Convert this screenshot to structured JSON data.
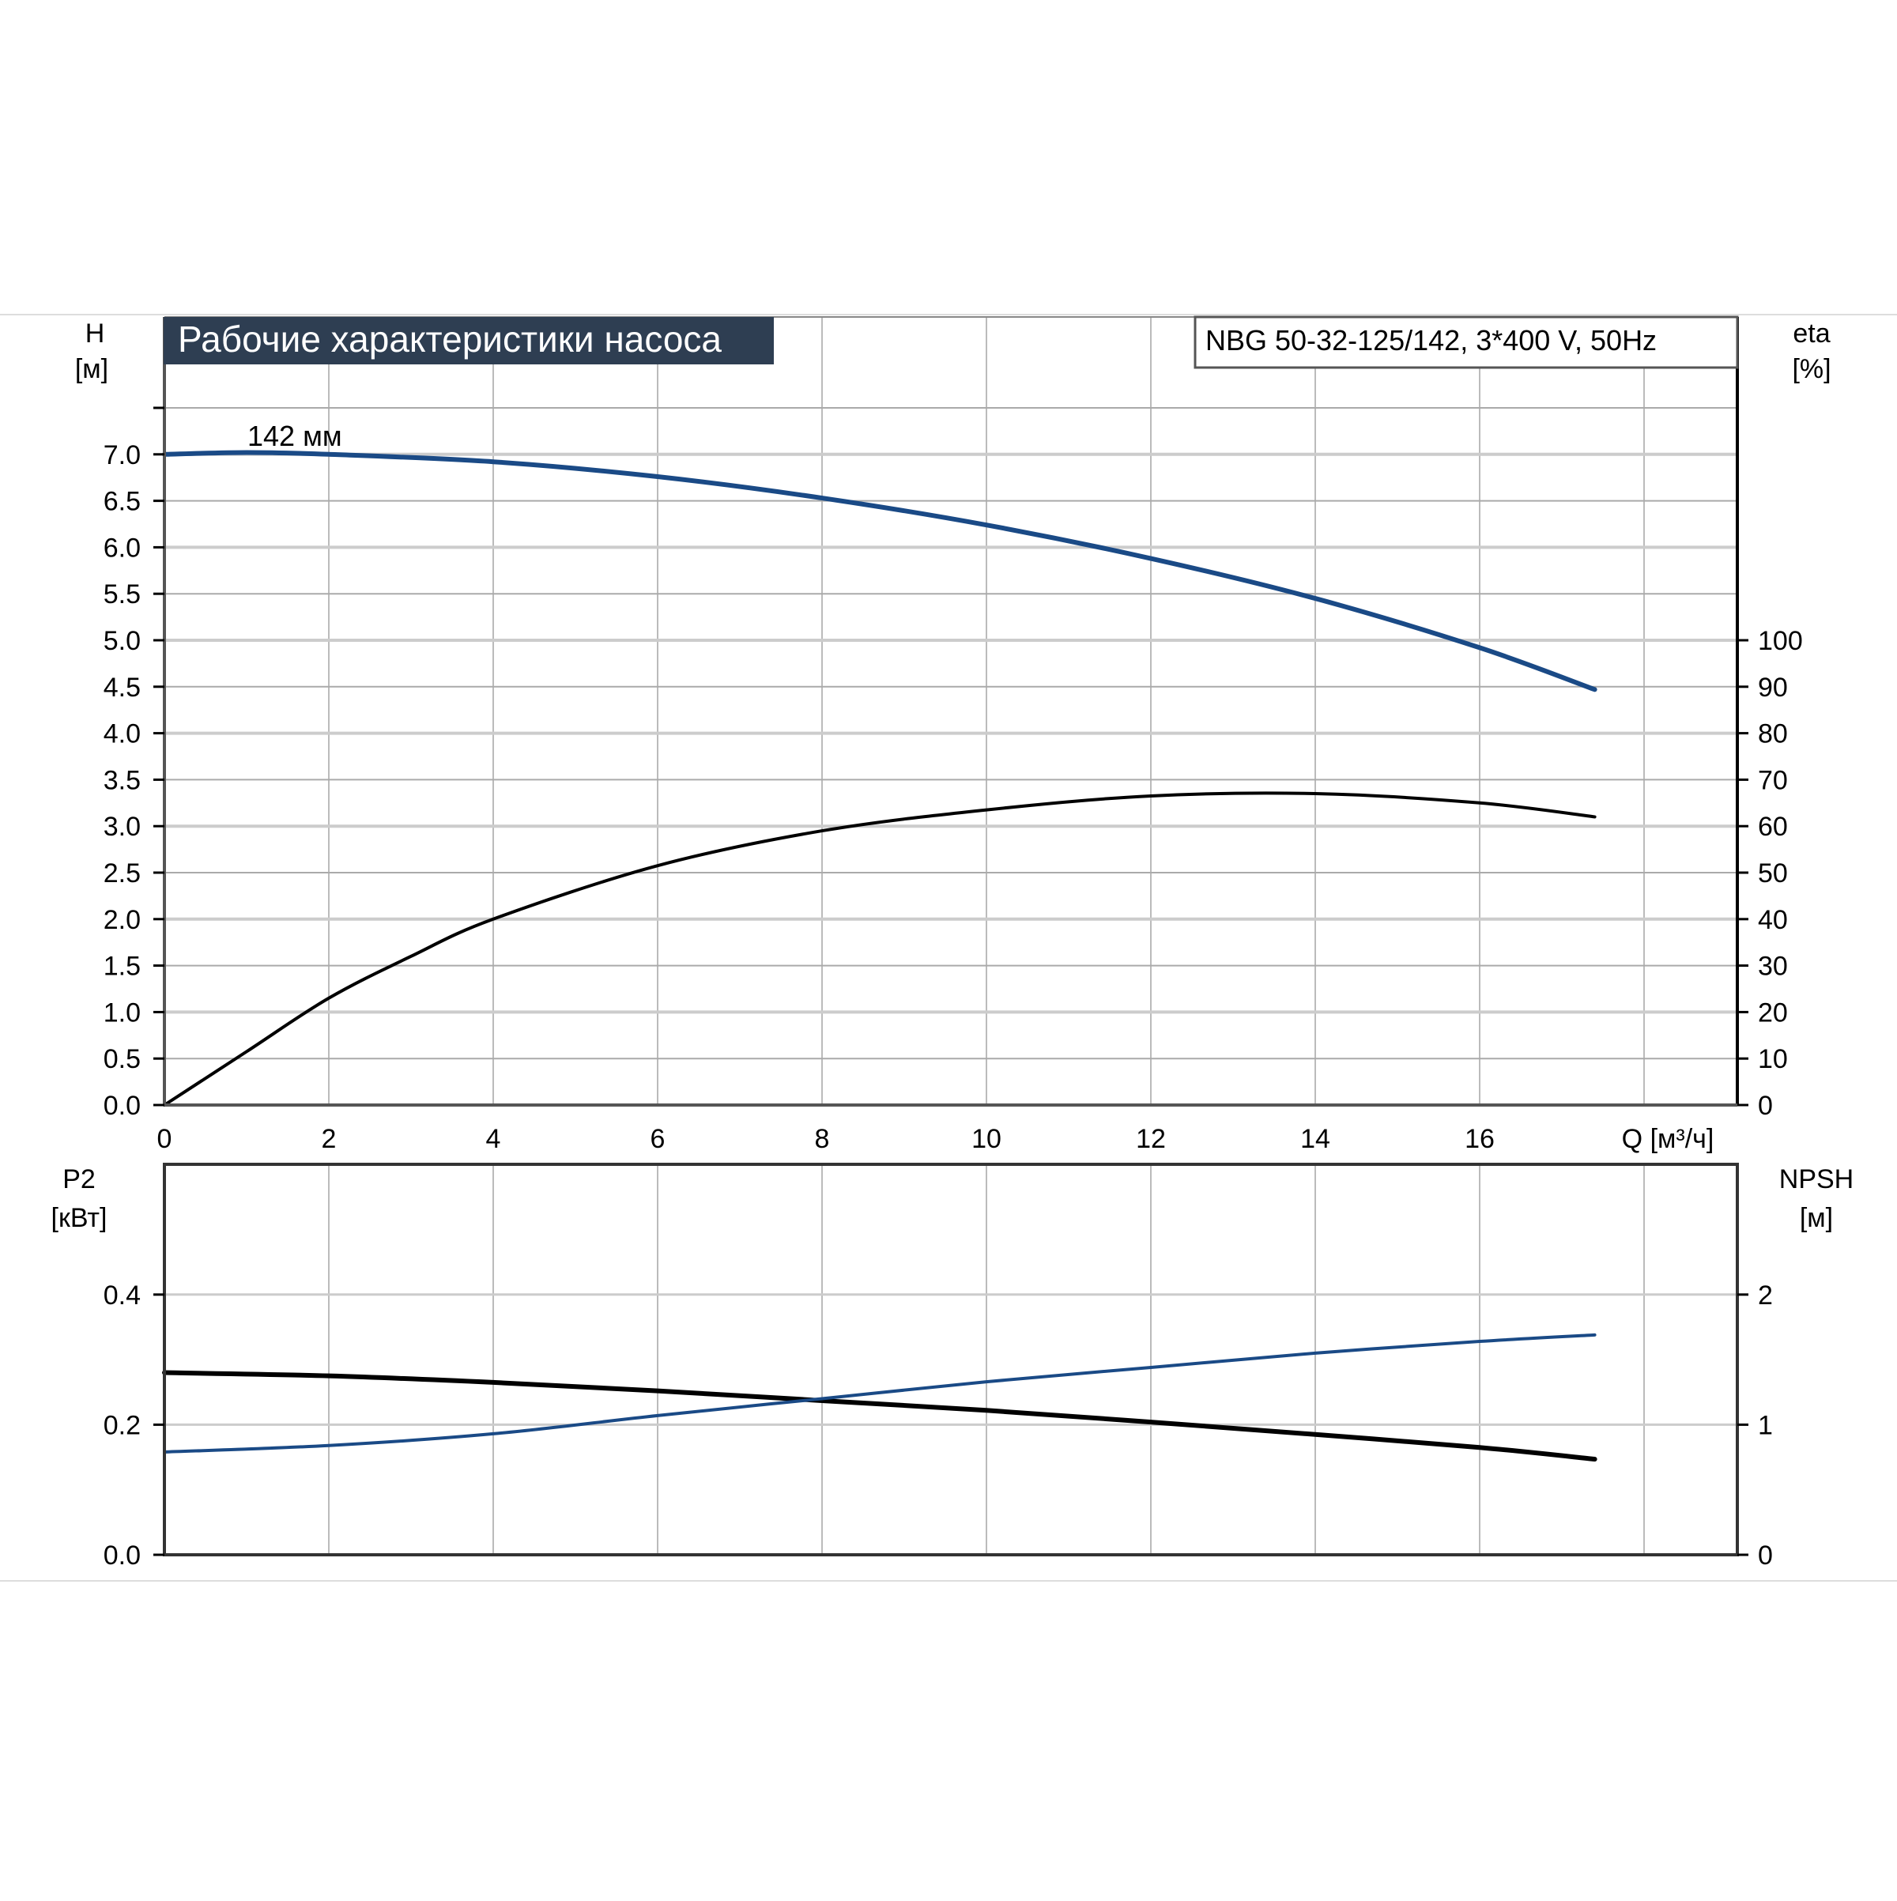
{
  "chart_data": [
    {
      "type": "line",
      "title": "Рабочие характеристики насоса",
      "model": "NBG 50-32-125/142, 3*400 V, 50Hz",
      "xlabel": "Q [м³/ч]",
      "xlim": [
        0,
        19
      ],
      "xticks": [
        "0",
        "2",
        "4",
        "6",
        "8",
        "10",
        "12",
        "14",
        "16"
      ],
      "ylabel_left": {
        "name": "H",
        "unit": "[м]"
      },
      "ylim_left": [
        0,
        7.5
      ],
      "yticks_left": [
        "0.0",
        "0.5",
        "1.0",
        "1.5",
        "2.0",
        "2.5",
        "3.0",
        "3.5",
        "4.0",
        "4.5",
        "5.0",
        "5.5",
        "6.0",
        "6.5",
        "7.0"
      ],
      "ylabel_right": {
        "name": "eta",
        "unit": "[%]"
      },
      "ylim_right": [
        0,
        150
      ],
      "yticks_right": [
        "0",
        "10",
        "20",
        "30",
        "40",
        "50",
        "60",
        "70",
        "80",
        "90",
        "100"
      ],
      "annotation": "142 мм",
      "grid": true,
      "series": [
        {
          "name": "H",
          "axis": "left",
          "color": "#1a4a86",
          "x": [
            0,
            1,
            2,
            4,
            6,
            8,
            10,
            12,
            14,
            16,
            17.4
          ],
          "y": [
            7.0,
            7.02,
            7.0,
            6.92,
            6.76,
            6.53,
            6.24,
            5.88,
            5.45,
            4.92,
            4.47
          ]
        },
        {
          "name": "eta",
          "axis": "right",
          "color": "#000000",
          "x": [
            0,
            1,
            2,
            3,
            4,
            6,
            8,
            10,
            12,
            14,
            16,
            17.4
          ],
          "y": [
            0,
            11.5,
            23,
            32,
            40,
            51.5,
            59,
            63.5,
            66.5,
            67,
            65,
            62
          ]
        }
      ]
    },
    {
      "type": "line",
      "xlim": [
        0,
        19
      ],
      "ylabel_left": {
        "name": "P2",
        "unit": "[кВт]"
      },
      "ylim_left": [
        0,
        0.6
      ],
      "yticks_left": [
        "0.0",
        "0.2",
        "0.4"
      ],
      "ylabel_right": {
        "name": "NPSH",
        "unit": "[м]"
      },
      "ylim_right": [
        0,
        3
      ],
      "yticks_right": [
        "0",
        "1",
        "2"
      ],
      "grid": true,
      "series": [
        {
          "name": "P2",
          "axis": "left",
          "color": "#000000",
          "x": [
            0,
            2,
            4,
            6,
            8,
            10,
            12,
            14,
            16,
            17.4
          ],
          "y": [
            0.28,
            0.275,
            0.265,
            0.252,
            0.237,
            0.222,
            0.204,
            0.185,
            0.165,
            0.147
          ]
        },
        {
          "name": "NPSH",
          "axis": "right",
          "color": "#1a4a86",
          "x": [
            0,
            2,
            4,
            6,
            8,
            10,
            12,
            14,
            16,
            17.4
          ],
          "y": [
            0.79,
            0.84,
            0.93,
            1.07,
            1.2,
            1.33,
            1.44,
            1.55,
            1.64,
            1.69
          ]
        }
      ]
    }
  ]
}
